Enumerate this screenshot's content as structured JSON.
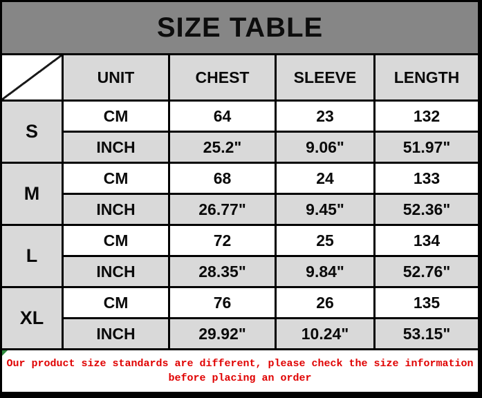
{
  "chart_data": {
    "type": "table",
    "title": "SIZE TABLE",
    "columns": [
      "UNIT",
      "CHEST",
      "SLEEVE",
      "LENGTH"
    ],
    "unit_rows": [
      "CM",
      "INCH"
    ],
    "sizes": [
      {
        "label": "S",
        "cm": {
          "chest": "64",
          "sleeve": "23",
          "length": "132"
        },
        "inch": {
          "chest": "25.2\"",
          "sleeve": "9.06\"",
          "length": "51.97\""
        }
      },
      {
        "label": "M",
        "cm": {
          "chest": "68",
          "sleeve": "24",
          "length": "133"
        },
        "inch": {
          "chest": "26.77\"",
          "sleeve": "9.45\"",
          "length": "52.36\""
        }
      },
      {
        "label": "L",
        "cm": {
          "chest": "72",
          "sleeve": "25",
          "length": "134"
        },
        "inch": {
          "chest": "28.35\"",
          "sleeve": "9.84\"",
          "length": "52.76\""
        }
      },
      {
        "label": "XL",
        "cm": {
          "chest": "76",
          "sleeve": "26",
          "length": "135"
        },
        "inch": {
          "chest": "29.92\"",
          "sleeve": "10.24\"",
          "length": "53.15\""
        }
      }
    ],
    "note_line1": "Our product size standards are different, please check the size information",
    "note_line2": "before placing an order",
    "legend_position": "none",
    "grid": true
  },
  "colors": {
    "title_bg": "#868686",
    "header_bg": "#d9d9d9",
    "grid": "#000000",
    "note_text": "#e00000",
    "corner_marker": "#2e8b3d"
  }
}
